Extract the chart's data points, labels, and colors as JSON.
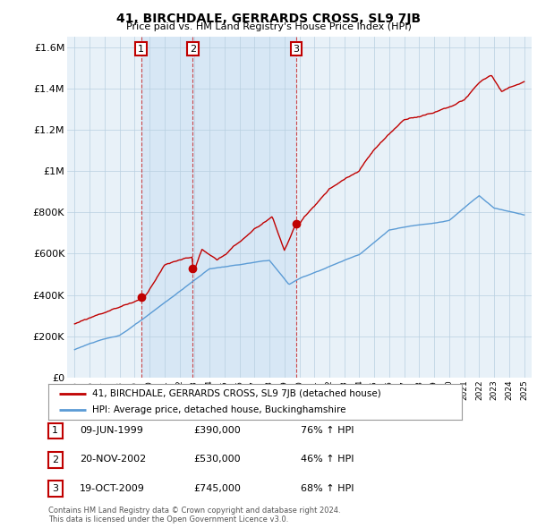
{
  "title": "41, BIRCHDALE, GERRARDS CROSS, SL9 7JB",
  "subtitle": "Price paid vs. HM Land Registry's House Price Index (HPI)",
  "hpi_label": "HPI: Average price, detached house, Buckinghamshire",
  "property_label": "41, BIRCHDALE, GERRARDS CROSS, SL9 7JB (detached house)",
  "yticks": [
    0,
    200000,
    400000,
    600000,
    800000,
    1000000,
    1200000,
    1400000,
    1600000
  ],
  "ytick_labels": [
    "£0",
    "£200K",
    "£400K",
    "£600K",
    "£800K",
    "£1M",
    "£1.2M",
    "£1.4M",
    "£1.6M"
  ],
  "hpi_color": "#5b9bd5",
  "property_color": "#c00000",
  "vline_color": "#c00000",
  "bg_color": "#dce9f5",
  "chart_bg": "#e8f1f8",
  "transactions": [
    {
      "num": 1,
      "date": "09-JUN-1999",
      "price": 390000,
      "pct": "76%",
      "x": 1999.44
    },
    {
      "num": 2,
      "date": "20-NOV-2002",
      "price": 530000,
      "pct": "46%",
      "x": 2002.88
    },
    {
      "num": 3,
      "date": "19-OCT-2009",
      "price": 745000,
      "pct": "68%",
      "x": 2009.79
    }
  ],
  "footer": "Contains HM Land Registry data © Crown copyright and database right 2024.\nThis data is licensed under the Open Government Licence v3.0.",
  "background_color": "#ffffff",
  "xlim": [
    1994.5,
    2025.5
  ],
  "ylim": [
    0,
    1650000
  ]
}
